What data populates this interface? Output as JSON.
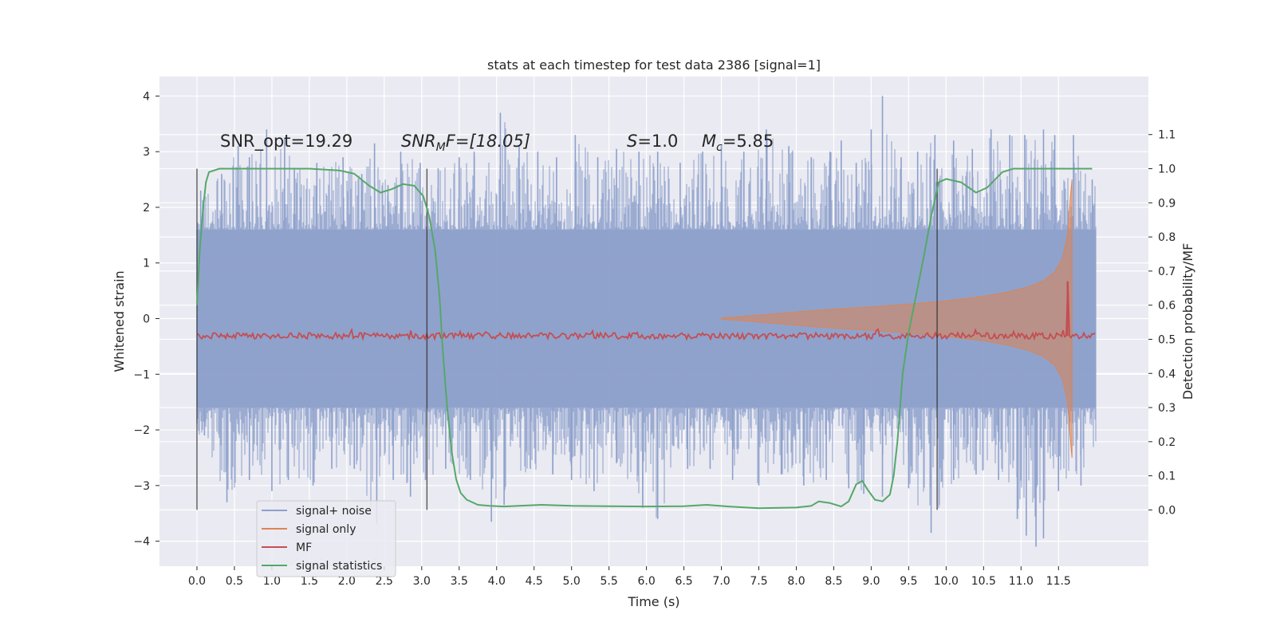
{
  "chart_data": {
    "type": "line",
    "title": "stats at each timestep for test data 2386 [signal=1]",
    "xlabel": "Time (s)",
    "ylabel": "Whitened strain",
    "y2label": "Detection probability/MF",
    "xlim": [
      -0.5,
      12.7
    ],
    "ylim": [
      -4.45,
      4.35
    ],
    "y2lim": [
      -0.165,
      1.27
    ],
    "x_ticks": [
      "0.0",
      "0.5",
      "1.0",
      "1.5",
      "2.0",
      "2.5",
      "3.0",
      "3.5",
      "4.0",
      "4.5",
      "5.0",
      "5.5",
      "6.0",
      "6.5",
      "7.0",
      "7.5",
      "8.0",
      "8.5",
      "9.0",
      "9.5",
      "10.0",
      "10.5",
      "11.0",
      "11.5"
    ],
    "y_ticks": [
      "4",
      "3",
      "2",
      "1",
      "0",
      "−1",
      "−2",
      "−3",
      "−4"
    ],
    "y2_ticks": [
      "1.1",
      "1.0",
      "0.9",
      "0.8",
      "0.7",
      "0.6",
      "0.5",
      "0.4",
      "0.3",
      "0.2",
      "0.1",
      "0.0"
    ],
    "grid": true,
    "legend_position": "lower-left",
    "colors": {
      "background": "#eaeaf2",
      "grid": "#ffffff",
      "noise": "#8da0cb",
      "signal_only": "#dd8452",
      "mf": "#c44e52",
      "stats": "#55a868",
      "vlines": "#262626"
    },
    "vertical_lines_x": [
      0.0,
      3.07,
      9.88
    ],
    "annotations": {
      "snr_opt": "SNR_opt=19.29",
      "snr_mf_base": "SNR",
      "snr_mf_sub": "M",
      "snr_mf_tail": "F=[18.05]",
      "s_base": "S",
      "s_tail": "=1.0",
      "mc_base": "M",
      "mc_sub": "c",
      "mc_tail": "=5.85"
    },
    "series": [
      {
        "name": "signal+ noise",
        "style": "noise band",
        "x_range": [
          0.0,
          12.0
        ],
        "envelope_typical": [
          -1.6,
          1.6
        ],
        "peaks_max": [
          [
            0.05,
            2.3
          ],
          [
            0.33,
            2.6
          ],
          [
            0.55,
            3.1
          ],
          [
            0.7,
            2.9
          ],
          [
            0.93,
            3.4
          ],
          [
            1.17,
            3.25
          ],
          [
            1.3,
            2.7
          ],
          [
            1.6,
            2.8
          ],
          [
            1.95,
            2.9
          ],
          [
            2.2,
            2.6
          ],
          [
            2.37,
            3.15
          ],
          [
            2.55,
            2.4
          ],
          [
            2.72,
            3.0
          ],
          [
            2.98,
            2.8
          ],
          [
            3.22,
            2.7
          ],
          [
            3.5,
            2.9
          ],
          [
            3.7,
            3.0
          ],
          [
            4.05,
            3.7
          ],
          [
            4.3,
            3.1
          ],
          [
            4.55,
            3.0
          ],
          [
            4.8,
            2.9
          ],
          [
            5.05,
            3.3
          ],
          [
            5.35,
            2.9
          ],
          [
            5.6,
            3.05
          ],
          [
            5.9,
            3.0
          ],
          [
            6.15,
            3.0
          ],
          [
            6.45,
            2.8
          ],
          [
            6.75,
            3.0
          ],
          [
            7.0,
            3.1
          ],
          [
            7.3,
            3.0
          ],
          [
            7.6,
            3.4
          ],
          [
            7.9,
            3.1
          ],
          [
            8.2,
            2.9
          ],
          [
            8.45,
            3.0
          ],
          [
            8.6,
            3.2
          ],
          [
            8.8,
            2.8
          ],
          [
            9.0,
            3.4
          ],
          [
            9.15,
            4.0
          ],
          [
            9.4,
            2.9
          ],
          [
            9.62,
            3.0
          ],
          [
            9.85,
            3.3
          ],
          [
            10.1,
            3.2
          ],
          [
            10.35,
            3.05
          ],
          [
            10.6,
            3.4
          ],
          [
            10.85,
            3.3
          ],
          [
            11.05,
            3.3
          ],
          [
            11.3,
            3.4
          ],
          [
            11.45,
            3.3
          ],
          [
            11.7,
            3.3
          ],
          [
            11.95,
            2.5
          ]
        ],
        "peaks_min": [
          [
            0.1,
            -2.1
          ],
          [
            0.4,
            -3.3
          ],
          [
            0.7,
            -2.9
          ],
          [
            1.0,
            -3.1
          ],
          [
            1.22,
            -2.9
          ],
          [
            1.55,
            -3.0
          ],
          [
            1.8,
            -2.7
          ],
          [
            2.1,
            -2.7
          ],
          [
            2.4,
            -3.7
          ],
          [
            2.62,
            -2.9
          ],
          [
            2.85,
            -3.2
          ],
          [
            3.05,
            -2.9
          ],
          [
            3.32,
            -2.7
          ],
          [
            3.65,
            -2.9
          ],
          [
            3.93,
            -3.65
          ],
          [
            4.1,
            -3.35
          ],
          [
            4.45,
            -2.7
          ],
          [
            4.75,
            -2.8
          ],
          [
            5.0,
            -2.9
          ],
          [
            5.3,
            -3.1
          ],
          [
            5.6,
            -2.6
          ],
          [
            5.95,
            -3.4
          ],
          [
            6.15,
            -3.6
          ],
          [
            6.55,
            -2.7
          ],
          [
            6.85,
            -2.7
          ],
          [
            7.15,
            -2.9
          ],
          [
            7.5,
            -3.0
          ],
          [
            7.8,
            -2.8
          ],
          [
            8.1,
            -3.0
          ],
          [
            8.4,
            -2.9
          ],
          [
            8.7,
            -3.05
          ],
          [
            8.9,
            -3.15
          ],
          [
            9.15,
            -3.2
          ],
          [
            9.5,
            -3.05
          ],
          [
            9.8,
            -3.85
          ],
          [
            10.1,
            -2.9
          ],
          [
            10.4,
            -2.8
          ],
          [
            10.7,
            -2.9
          ],
          [
            10.95,
            -3.6
          ],
          [
            11.07,
            -3.9
          ],
          [
            11.2,
            -4.1
          ],
          [
            11.3,
            -3.95
          ],
          [
            11.5,
            -3.1
          ],
          [
            11.8,
            -3.0
          ]
        ]
      },
      {
        "name": "signal only",
        "style": "chirp envelope",
        "x": [
          7.0,
          7.5,
          8.0,
          8.5,
          9.0,
          9.5,
          10.0,
          10.5,
          10.8,
          11.1,
          11.3,
          11.45,
          11.55,
          11.62,
          11.66,
          11.68
        ],
        "amplitude": [
          0.01,
          0.06,
          0.12,
          0.17,
          0.21,
          0.26,
          0.32,
          0.4,
          0.47,
          0.57,
          0.68,
          0.84,
          1.08,
          1.5,
          2.2,
          2.5
        ]
      },
      {
        "name": "MF",
        "style": "line",
        "baseline_y2": 0.51,
        "x_range": [
          0.0,
          12.0
        ],
        "spike": {
          "x": 11.62,
          "y2": 0.67
        }
      },
      {
        "name": "signal statistics",
        "style": "line",
        "x": [
          0.0,
          0.04,
          0.08,
          0.12,
          0.16,
          0.3,
          0.6,
          1.0,
          1.5,
          1.9,
          2.1,
          2.3,
          2.45,
          2.6,
          2.75,
          2.9,
          3.02,
          3.1,
          3.18,
          3.24,
          3.28,
          3.34,
          3.4,
          3.46,
          3.52,
          3.6,
          3.75,
          3.9,
          4.1,
          4.3,
          4.6,
          5.0,
          5.5,
          6.0,
          6.5,
          6.8,
          7.1,
          7.5,
          8.0,
          8.2,
          8.3,
          8.45,
          8.6,
          8.7,
          8.8,
          8.88,
          8.95,
          9.05,
          9.15,
          9.25,
          9.3,
          9.35,
          9.42,
          9.5,
          9.6,
          9.7,
          9.8,
          9.9,
          10.0,
          10.2,
          10.4,
          10.55,
          10.75,
          10.9,
          11.1,
          11.5,
          11.95
        ],
        "y2": [
          0.6,
          0.77,
          0.88,
          0.96,
          0.99,
          1.0,
          1.0,
          1.0,
          1.0,
          0.995,
          0.985,
          0.95,
          0.93,
          0.94,
          0.955,
          0.95,
          0.92,
          0.86,
          0.76,
          0.62,
          0.47,
          0.3,
          0.17,
          0.09,
          0.05,
          0.03,
          0.015,
          0.012,
          0.01,
          0.012,
          0.015,
          0.012,
          0.011,
          0.01,
          0.011,
          0.015,
          0.01,
          0.005,
          0.007,
          0.012,
          0.025,
          0.02,
          0.01,
          0.025,
          0.075,
          0.085,
          0.06,
          0.03,
          0.025,
          0.045,
          0.1,
          0.2,
          0.4,
          0.52,
          0.63,
          0.74,
          0.86,
          0.96,
          0.97,
          0.96,
          0.93,
          0.945,
          0.99,
          1.0,
          1.0,
          1.0,
          1.0
        ]
      }
    ],
    "legend": [
      {
        "label": "signal+ noise"
      },
      {
        "label": "signal only"
      },
      {
        "label": "MF"
      },
      {
        "label": "signal statistics"
      }
    ]
  }
}
